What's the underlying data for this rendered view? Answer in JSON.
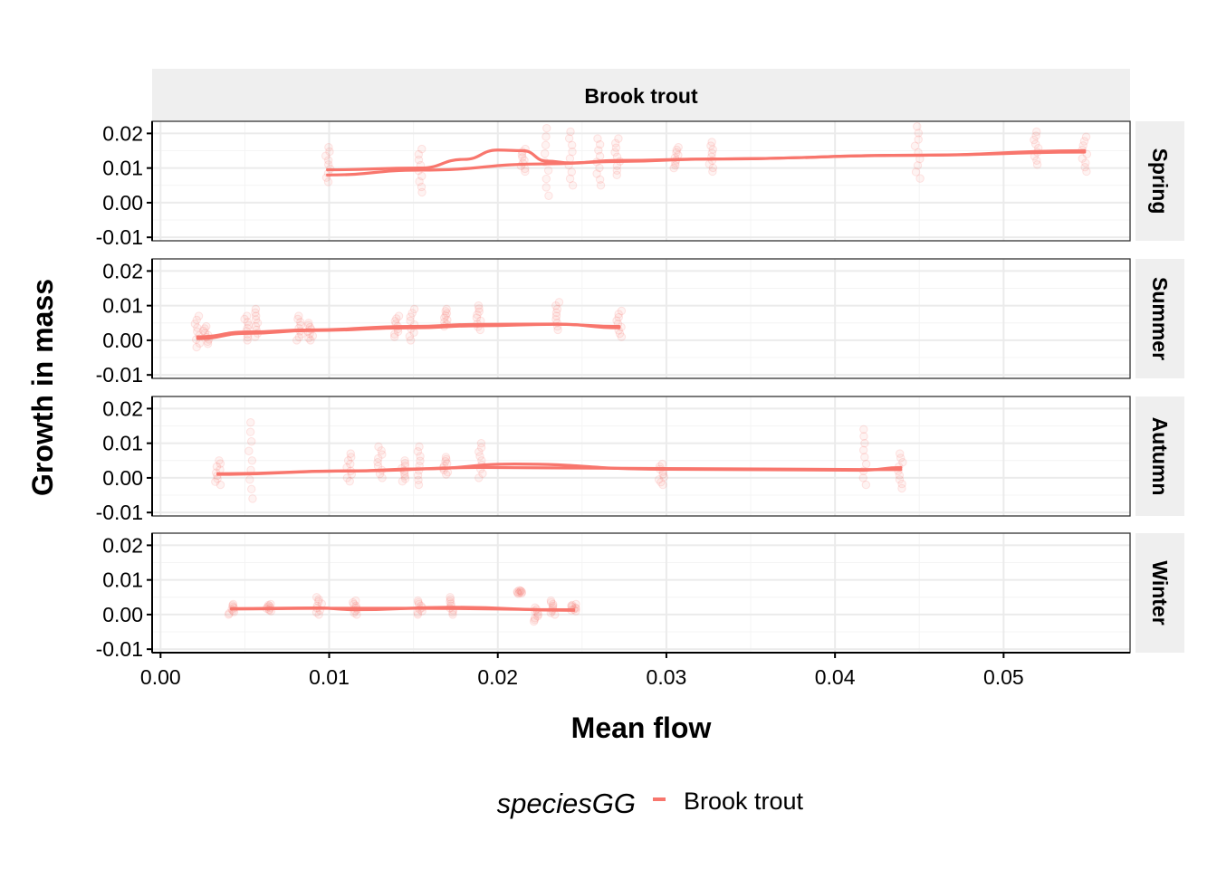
{
  "chart_data": {
    "type": "scatter",
    "column_strip": "Brook trout",
    "xlabel": "Mean flow",
    "ylabel": "Growth in mass",
    "xlim": [
      -0.0005,
      0.0575
    ],
    "ylim": [
      -0.011,
      0.0235
    ],
    "x_ticks": [
      0.0,
      0.01,
      0.02,
      0.03,
      0.04,
      0.05
    ],
    "x_tick_labels": [
      "0.00",
      "0.01",
      "0.02",
      "0.03",
      "0.04",
      "0.05"
    ],
    "y_ticks": [
      -0.01,
      0.0,
      0.01,
      0.02
    ],
    "y_tick_labels": [
      "-0.01",
      "0.00",
      "0.01",
      "0.02"
    ],
    "grid": true,
    "legend": {
      "title": "speciesGG",
      "position": "bottom",
      "entries": [
        {
          "label": "Brook trout",
          "color": "#F8766D"
        }
      ]
    },
    "series_color": "#F8766D",
    "panels": [
      {
        "row": "Spring",
        "point_groups": [
          {
            "x": 0.0099,
            "ymin": 0.006,
            "ymax": 0.016
          },
          {
            "x": 0.0154,
            "ymin": 0.003,
            "ymax": 0.0155
          },
          {
            "x": 0.0215,
            "ymin": 0.009,
            "ymax": 0.0155
          },
          {
            "x": 0.0229,
            "ymin": 0.002,
            "ymax": 0.0215
          },
          {
            "x": 0.0243,
            "ymin": 0.005,
            "ymax": 0.0205
          },
          {
            "x": 0.026,
            "ymin": 0.005,
            "ymax": 0.0185
          },
          {
            "x": 0.0271,
            "ymin": 0.008,
            "ymax": 0.0185
          },
          {
            "x": 0.0306,
            "ymin": 0.01,
            "ymax": 0.016
          },
          {
            "x": 0.0327,
            "ymin": 0.009,
            "ymax": 0.0175
          },
          {
            "x": 0.0449,
            "ymin": 0.007,
            "ymax": 0.022
          },
          {
            "x": 0.0519,
            "ymin": 0.011,
            "ymax": 0.0205
          },
          {
            "x": 0.0548,
            "ymin": 0.009,
            "ymax": 0.019
          }
        ],
        "smooth_lines": [
          {
            "x": [
              0.0099,
              0.0154,
              0.0229,
              0.0271,
              0.0327,
              0.0449,
              0.0548
            ],
            "y": [
              0.008,
              0.0094,
              0.0112,
              0.0119,
              0.0126,
              0.0137,
              0.0146
            ]
          },
          {
            "x": [
              0.0099,
              0.0154,
              0.018,
              0.02,
              0.0215,
              0.0229,
              0.0243,
              0.0271,
              0.0327,
              0.0449,
              0.0548
            ],
            "y": [
              0.0095,
              0.01,
              0.0125,
              0.0152,
              0.015,
              0.012,
              0.0115,
              0.0122,
              0.0126,
              0.0137,
              0.015
            ]
          }
        ]
      },
      {
        "row": "Summer",
        "point_groups": [
          {
            "x": 0.0022,
            "ymin": -0.002,
            "ymax": 0.007
          },
          {
            "x": 0.0027,
            "ymin": -0.001,
            "ymax": 0.004
          },
          {
            "x": 0.0051,
            "ymin": 0.0,
            "ymax": 0.007
          },
          {
            "x": 0.0057,
            "ymin": 0.001,
            "ymax": 0.009
          },
          {
            "x": 0.0082,
            "ymin": 0.0,
            "ymax": 0.007
          },
          {
            "x": 0.0089,
            "ymin": 0.0,
            "ymax": 0.005
          },
          {
            "x": 0.014,
            "ymin": 0.001,
            "ymax": 0.007
          },
          {
            "x": 0.0149,
            "ymin": 0.0,
            "ymax": 0.009
          },
          {
            "x": 0.0169,
            "ymin": 0.004,
            "ymax": 0.009
          },
          {
            "x": 0.0189,
            "ymin": 0.003,
            "ymax": 0.01
          },
          {
            "x": 0.0235,
            "ymin": 0.003,
            "ymax": 0.011
          },
          {
            "x": 0.0272,
            "ymin": 0.001,
            "ymax": 0.0085
          }
        ],
        "smooth_lines": [
          {
            "x": [
              0.0022,
              0.0051,
              0.0089,
              0.0149,
              0.0189,
              0.0235,
              0.0272
            ],
            "y": [
              0.0005,
              0.002,
              0.0028,
              0.0036,
              0.0042,
              0.0046,
              0.004
            ]
          },
          {
            "x": [
              0.0022,
              0.0051,
              0.0089,
              0.0149,
              0.0189,
              0.0235,
              0.0272
            ],
            "y": [
              0.001,
              0.0024,
              0.003,
              0.004,
              0.0046,
              0.0047,
              0.0036
            ]
          }
        ]
      },
      {
        "row": "Autumn",
        "point_groups": [
          {
            "x": 0.0034,
            "ymin": -0.002,
            "ymax": 0.005
          },
          {
            "x": 0.0053,
            "ymin": -0.006,
            "ymax": 0.016
          },
          {
            "x": 0.0112,
            "ymin": -0.001,
            "ymax": 0.007
          },
          {
            "x": 0.013,
            "ymin": 0.0,
            "ymax": 0.009
          },
          {
            "x": 0.0144,
            "ymin": -0.001,
            "ymax": 0.005
          },
          {
            "x": 0.0154,
            "ymin": -0.002,
            "ymax": 0.009
          },
          {
            "x": 0.0169,
            "ymin": 0.001,
            "ymax": 0.006
          },
          {
            "x": 0.019,
            "ymin": 0.0,
            "ymax": 0.01
          },
          {
            "x": 0.0297,
            "ymin": -0.002,
            "ymax": 0.004
          },
          {
            "x": 0.0417,
            "ymin": -0.002,
            "ymax": 0.014
          },
          {
            "x": 0.0439,
            "ymin": -0.003,
            "ymax": 0.007
          }
        ],
        "smooth_lines": [
          {
            "x": [
              0.0034,
              0.0112,
              0.019,
              0.0297,
              0.0417,
              0.0439
            ],
            "y": [
              0.001,
              0.002,
              0.003,
              0.0027,
              0.0024,
              0.0024
            ]
          },
          {
            "x": [
              0.0034,
              0.0112,
              0.0154,
              0.021,
              0.0297,
              0.0417,
              0.0439
            ],
            "y": [
              0.0012,
              0.002,
              0.0026,
              0.004,
              0.0025,
              0.0022,
              0.003
            ]
          }
        ]
      },
      {
        "row": "Winter",
        "point_groups": [
          {
            "x": 0.0042,
            "ymin": 0.0,
            "ymax": 0.003
          },
          {
            "x": 0.0064,
            "ymin": 0.001,
            "ymax": 0.003
          },
          {
            "x": 0.0094,
            "ymin": 0.0,
            "ymax": 0.005
          },
          {
            "x": 0.0115,
            "ymin": 0.0,
            "ymax": 0.004
          },
          {
            "x": 0.0154,
            "ymin": 0.0,
            "ymax": 0.004
          },
          {
            "x": 0.0173,
            "ymin": 0.0,
            "ymax": 0.005
          },
          {
            "x": 0.0213,
            "ymin": 0.006,
            "ymax": 0.007
          },
          {
            "x": 0.0223,
            "ymin": -0.002,
            "ymax": 0.002
          },
          {
            "x": 0.0233,
            "ymin": 0.0,
            "ymax": 0.004
          },
          {
            "x": 0.0245,
            "ymin": 0.001,
            "ymax": 0.003
          }
        ],
        "smooth_lines": [
          {
            "x": [
              0.0042,
              0.0094,
              0.0154,
              0.0245
            ],
            "y": [
              0.0016,
              0.0018,
              0.0018,
              0.0014
            ]
          },
          {
            "x": [
              0.0042,
              0.0094,
              0.0115,
              0.0173,
              0.0245
            ],
            "y": [
              0.0017,
              0.0019,
              0.0014,
              0.0021,
              0.0012
            ]
          }
        ]
      }
    ]
  }
}
